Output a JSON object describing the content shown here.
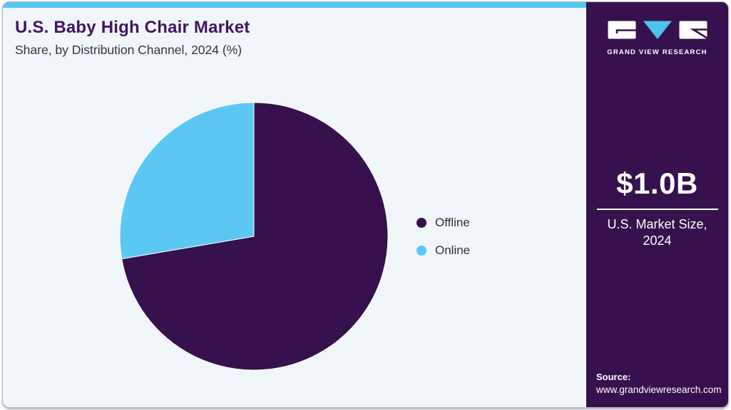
{
  "header": {
    "title": "U.S. Baby High Chair Market",
    "subtitle": "Share, by Distribution Channel, 2024 (%)"
  },
  "chart_data": {
    "type": "pie",
    "title": "U.S. Baby High Chair Market Share, by Distribution Channel, 2024 (%)",
    "unit": "%",
    "labels": [
      "Offline",
      "Online"
    ],
    "values": [
      72.3,
      27.7
    ],
    "colors": [
      "#36114d",
      "#5bc8f3"
    ],
    "legend_position": "right",
    "start_angle_deg": 0,
    "direction": "clockwise"
  },
  "sidebar": {
    "brand_name": "GRAND VIEW RESEARCH",
    "market_size_value": "$1.0B",
    "market_size_caption_line1": "U.S. Market Size,",
    "market_size_caption_line2": "2024",
    "source_label": "Source:",
    "source_url": "www.grandviewresearch.com"
  },
  "colors": {
    "top_accent_bar": "#55c5f0",
    "sidebar_background": "#36114d",
    "title_text": "#411562",
    "subtitle_text": "#37343e",
    "main_background": "#f0f6fa",
    "logo_triangle": "#4cc3ee"
  }
}
